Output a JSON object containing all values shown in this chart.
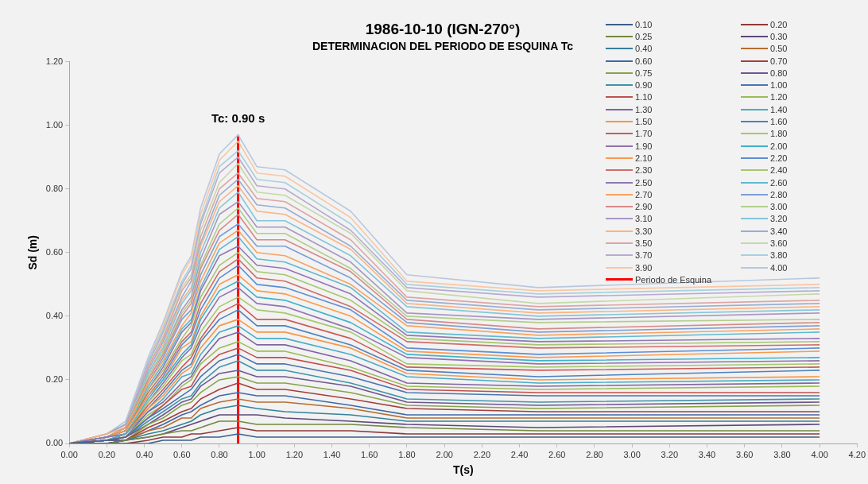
{
  "chart_data": {
    "type": "line",
    "title": "1986-10-10 (IGN-270°)",
    "subtitle": "DETERMINACION DEL PERIODO DE ESQUINA Tc",
    "xlabel": "T(s)",
    "ylabel": "Sd (m)",
    "x": [
      0,
      0.2,
      0.3,
      0.42,
      0.5,
      0.6,
      0.65,
      0.7,
      0.8,
      0.9,
      1.0,
      1.15,
      1.5,
      1.8,
      2.5,
      4.0
    ],
    "xlim": [
      0,
      4.2
    ],
    "ylim": [
      0,
      1.2
    ],
    "xticks": [
      {
        "value": 0,
        "label": "0.00"
      },
      {
        "value": 0.2,
        "label": "0.20"
      },
      {
        "value": 0.4,
        "label": "0.40"
      },
      {
        "value": 0.6,
        "label": "0.60"
      },
      {
        "value": 0.8,
        "label": "0.80"
      },
      {
        "value": 1.0,
        "label": "1.00"
      },
      {
        "value": 1.2,
        "label": "1.20"
      },
      {
        "value": 1.4,
        "label": "1.40"
      },
      {
        "value": 1.6,
        "label": "1.60"
      },
      {
        "value": 1.8,
        "label": "1.80"
      },
      {
        "value": 2.0,
        "label": "2.00"
      },
      {
        "value": 2.2,
        "label": "2.20"
      },
      {
        "value": 2.4,
        "label": "2.40"
      },
      {
        "value": 2.6,
        "label": "2.60"
      },
      {
        "value": 2.8,
        "label": "2.80"
      },
      {
        "value": 3.0,
        "label": "3.00"
      },
      {
        "value": 3.2,
        "label": "3.20"
      },
      {
        "value": 3.4,
        "label": "3.40"
      },
      {
        "value": 3.6,
        "label": "3.60"
      },
      {
        "value": 3.8,
        "label": "3.80"
      },
      {
        "value": 4.0,
        "label": "4.00"
      },
      {
        "value": 4.2,
        "label": "4.20"
      }
    ],
    "yticks": [
      {
        "value": 0,
        "label": "0.00"
      },
      {
        "value": 0.2,
        "label": "0.20"
      },
      {
        "value": 0.4,
        "label": "0.40"
      },
      {
        "value": 0.6,
        "label": "0.60"
      },
      {
        "value": 0.8,
        "label": "0.80"
      },
      {
        "value": 1.0,
        "label": "1.00"
      },
      {
        "value": 1.2,
        "label": "1.20"
      }
    ],
    "grid": false,
    "legend": "top right",
    "marker": "none",
    "line_style": "solid",
    "annotations": [
      "Tc: 0.90 s"
    ],
    "series": [
      {
        "name": "0.10",
        "color": "#3a5f8b",
        "values": [
          0,
          0,
          0,
          0,
          0.01,
          0.01,
          0.01,
          0.02,
          0.02,
          0.03,
          0.02,
          0.02,
          0.02,
          0.02,
          0.02,
          0.02
        ]
      },
      {
        "name": "0.20",
        "color": "#8e3a38",
        "values": [
          0,
          0,
          0,
          0.01,
          0.02,
          0.02,
          0.03,
          0.03,
          0.04,
          0.05,
          0.04,
          0.04,
          0.04,
          0.03,
          0.03,
          0.03
        ]
      },
      {
        "name": "0.25",
        "color": "#72893f",
        "values": [
          0,
          0,
          0.01,
          0.02,
          0.03,
          0.04,
          0.04,
          0.05,
          0.07,
          0.07,
          0.06,
          0.06,
          0.06,
          0.05,
          0.04,
          0.04
        ]
      },
      {
        "name": "0.30",
        "color": "#5d4878",
        "values": [
          0,
          0,
          0.01,
          0.02,
          0.03,
          0.05,
          0.06,
          0.07,
          0.09,
          0.09,
          0.09,
          0.08,
          0.07,
          0.06,
          0.05,
          0.06
        ]
      },
      {
        "name": "0.40",
        "color": "#35809a",
        "values": [
          0,
          0,
          0.01,
          0.03,
          0.04,
          0.06,
          0.07,
          0.09,
          0.11,
          0.12,
          0.11,
          0.1,
          0.09,
          0.07,
          0.07,
          0.07
        ]
      },
      {
        "name": "0.50",
        "color": "#b66d32",
        "values": [
          0,
          0,
          0.01,
          0.04,
          0.05,
          0.08,
          0.08,
          0.11,
          0.13,
          0.14,
          0.13,
          0.13,
          0.11,
          0.08,
          0.08,
          0.08
        ]
      },
      {
        "name": "0.60",
        "color": "#3f6aa5",
        "values": [
          0,
          0.01,
          0.01,
          0.04,
          0.06,
          0.09,
          0.1,
          0.12,
          0.15,
          0.16,
          0.15,
          0.15,
          0.12,
          0.09,
          0.09,
          0.09
        ]
      },
      {
        "name": "0.70",
        "color": "#a43f3c",
        "values": [
          0,
          0.01,
          0.01,
          0.05,
          0.07,
          0.1,
          0.11,
          0.14,
          0.17,
          0.19,
          0.17,
          0.17,
          0.14,
          0.11,
          0.1,
          0.1
        ]
      },
      {
        "name": "0.75",
        "color": "#86a34b",
        "values": [
          0,
          0.01,
          0.01,
          0.06,
          0.08,
          0.12,
          0.13,
          0.16,
          0.2,
          0.21,
          0.19,
          0.19,
          0.16,
          0.12,
          0.11,
          0.12
        ]
      },
      {
        "name": "0.80",
        "color": "#6e5690",
        "values": [
          0,
          0.01,
          0.02,
          0.06,
          0.09,
          0.13,
          0.14,
          0.18,
          0.22,
          0.23,
          0.21,
          0.21,
          0.18,
          0.13,
          0.12,
          0.13
        ]
      },
      {
        "name": "0.90",
        "color": "#3f94ab",
        "values": [
          0,
          0.01,
          0.02,
          0.07,
          0.1,
          0.14,
          0.15,
          0.19,
          0.24,
          0.26,
          0.23,
          0.23,
          0.19,
          0.14,
          0.13,
          0.14
        ]
      },
      {
        "name": "1.00",
        "color": "#4a74b0",
        "values": [
          0,
          0.01,
          0.02,
          0.08,
          0.11,
          0.15,
          0.17,
          0.21,
          0.26,
          0.28,
          0.25,
          0.25,
          0.21,
          0.16,
          0.15,
          0.15
        ]
      },
      {
        "name": "1.10",
        "color": "#c0504d",
        "values": [
          0,
          0.01,
          0.02,
          0.08,
          0.12,
          0.17,
          0.18,
          0.23,
          0.28,
          0.3,
          0.27,
          0.27,
          0.23,
          0.17,
          0.16,
          0.16
        ]
      },
      {
        "name": "1.20",
        "color": "#9bbb59",
        "values": [
          0,
          0.01,
          0.02,
          0.09,
          0.12,
          0.18,
          0.2,
          0.25,
          0.3,
          0.32,
          0.29,
          0.29,
          0.24,
          0.18,
          0.17,
          0.18
        ]
      },
      {
        "name": "1.30",
        "color": "#8064a2",
        "values": [
          0,
          0.01,
          0.02,
          0.1,
          0.13,
          0.19,
          0.21,
          0.26,
          0.33,
          0.35,
          0.31,
          0.31,
          0.26,
          0.19,
          0.18,
          0.19
        ]
      },
      {
        "name": "1.40",
        "color": "#4bacc6",
        "values": [
          0,
          0.01,
          0.03,
          0.1,
          0.14,
          0.21,
          0.22,
          0.28,
          0.35,
          0.37,
          0.33,
          0.33,
          0.28,
          0.21,
          0.19,
          0.2
        ]
      },
      {
        "name": "1.50",
        "color": "#f79646",
        "values": [
          0,
          0.01,
          0.03,
          0.11,
          0.15,
          0.22,
          0.24,
          0.3,
          0.37,
          0.39,
          0.35,
          0.35,
          0.3,
          0.22,
          0.2,
          0.21
        ]
      },
      {
        "name": "1.60",
        "color": "#4f81bd",
        "values": [
          0,
          0.01,
          0.03,
          0.11,
          0.16,
          0.23,
          0.25,
          0.32,
          0.39,
          0.42,
          0.37,
          0.37,
          0.31,
          0.23,
          0.21,
          0.23
        ]
      },
      {
        "name": "1.70",
        "color": "#cd5b58",
        "values": [
          0,
          0.01,
          0.03,
          0.12,
          0.17,
          0.24,
          0.27,
          0.33,
          0.41,
          0.44,
          0.39,
          0.39,
          0.33,
          0.24,
          0.23,
          0.24
        ]
      },
      {
        "name": "1.80",
        "color": "#a5c86a",
        "values": [
          0,
          0.01,
          0.03,
          0.13,
          0.18,
          0.26,
          0.28,
          0.35,
          0.43,
          0.46,
          0.42,
          0.41,
          0.35,
          0.25,
          0.24,
          0.25
        ]
      },
      {
        "name": "1.90",
        "color": "#8f73b0",
        "values": [
          0,
          0.02,
          0.03,
          0.13,
          0.19,
          0.27,
          0.3,
          0.37,
          0.46,
          0.49,
          0.44,
          0.43,
          0.36,
          0.27,
          0.25,
          0.26
        ]
      },
      {
        "name": "2.00",
        "color": "#3fb2cc",
        "values": [
          0,
          0.02,
          0.03,
          0.14,
          0.2,
          0.28,
          0.31,
          0.39,
          0.48,
          0.51,
          0.46,
          0.45,
          0.38,
          0.28,
          0.26,
          0.27
        ]
      },
      {
        "name": "2.10",
        "color": "#fa9a4e",
        "values": [
          0,
          0.02,
          0.04,
          0.15,
          0.2,
          0.3,
          0.32,
          0.4,
          0.5,
          0.53,
          0.48,
          0.47,
          0.4,
          0.29,
          0.27,
          0.29
        ]
      },
      {
        "name": "2.20",
        "color": "#5b8ed4",
        "values": [
          0,
          0.02,
          0.04,
          0.15,
          0.21,
          0.31,
          0.34,
          0.42,
          0.52,
          0.56,
          0.5,
          0.49,
          0.42,
          0.3,
          0.28,
          0.3
        ]
      },
      {
        "name": "2.30",
        "color": "#d06c69",
        "values": [
          0,
          0.02,
          0.04,
          0.16,
          0.22,
          0.32,
          0.35,
          0.44,
          0.54,
          0.58,
          0.52,
          0.51,
          0.43,
          0.32,
          0.3,
          0.31
        ]
      },
      {
        "name": "2.40",
        "color": "#a6c66e",
        "values": [
          0,
          0.02,
          0.04,
          0.17,
          0.23,
          0.33,
          0.37,
          0.46,
          0.56,
          0.6,
          0.54,
          0.53,
          0.45,
          0.33,
          0.31,
          0.32
        ]
      },
      {
        "name": "2.50",
        "color": "#9177b4",
        "values": [
          0,
          0.02,
          0.04,
          0.17,
          0.24,
          0.35,
          0.38,
          0.48,
          0.59,
          0.62,
          0.56,
          0.55,
          0.47,
          0.34,
          0.32,
          0.33
        ]
      },
      {
        "name": "2.60",
        "color": "#5fb9d1",
        "values": [
          0,
          0.02,
          0.04,
          0.18,
          0.25,
          0.36,
          0.39,
          0.49,
          0.61,
          0.65,
          0.58,
          0.57,
          0.49,
          0.35,
          0.33,
          0.35
        ]
      },
      {
        "name": "2.70",
        "color": "#f9a25f",
        "values": [
          0,
          0.02,
          0.05,
          0.19,
          0.26,
          0.37,
          0.41,
          0.51,
          0.63,
          0.67,
          0.6,
          0.59,
          0.5,
          0.37,
          0.34,
          0.36
        ]
      },
      {
        "name": "2.80",
        "color": "#7d9fd4",
        "values": [
          0,
          0.02,
          0.05,
          0.19,
          0.27,
          0.39,
          0.42,
          0.53,
          0.65,
          0.69,
          0.62,
          0.62,
          0.52,
          0.38,
          0.35,
          0.37
        ]
      },
      {
        "name": "2.90",
        "color": "#d68a88",
        "values": [
          0,
          0.02,
          0.05,
          0.2,
          0.28,
          0.4,
          0.44,
          0.55,
          0.67,
          0.72,
          0.64,
          0.64,
          0.54,
          0.39,
          0.36,
          0.38
        ]
      },
      {
        "name": "3.00",
        "color": "#b3ce8c",
        "values": [
          0,
          0.02,
          0.05,
          0.21,
          0.29,
          0.41,
          0.45,
          0.56,
          0.69,
          0.74,
          0.66,
          0.66,
          0.55,
          0.4,
          0.38,
          0.39
        ]
      },
      {
        "name": "3.10",
        "color": "#a897c2",
        "values": [
          0,
          0.02,
          0.05,
          0.21,
          0.29,
          0.42,
          0.46,
          0.58,
          0.72,
          0.76,
          0.68,
          0.68,
          0.57,
          0.41,
          0.39,
          0.41
        ]
      },
      {
        "name": "3.20",
        "color": "#85c6d8",
        "values": [
          0,
          0.02,
          0.05,
          0.22,
          0.3,
          0.44,
          0.48,
          0.6,
          0.74,
          0.79,
          0.7,
          0.7,
          0.59,
          0.43,
          0.4,
          0.42
        ]
      },
      {
        "name": "3.30",
        "color": "#f9b485",
        "values": [
          0,
          0.03,
          0.05,
          0.22,
          0.31,
          0.45,
          0.49,
          0.62,
          0.76,
          0.81,
          0.73,
          0.72,
          0.61,
          0.44,
          0.41,
          0.43
        ]
      },
      {
        "name": "3.40",
        "color": "#98aed3",
        "values": [
          0,
          0.03,
          0.06,
          0.23,
          0.32,
          0.46,
          0.51,
          0.63,
          0.78,
          0.83,
          0.75,
          0.74,
          0.62,
          0.45,
          0.42,
          0.44
        ]
      },
      {
        "name": "3.50",
        "color": "#dea4a3",
        "values": [
          0,
          0.03,
          0.06,
          0.24,
          0.33,
          0.48,
          0.52,
          0.65,
          0.8,
          0.85,
          0.77,
          0.76,
          0.64,
          0.46,
          0.43,
          0.45
        ]
      },
      {
        "name": "3.60",
        "color": "#c4d9a8",
        "values": [
          0,
          0.03,
          0.06,
          0.24,
          0.34,
          0.49,
          0.53,
          0.67,
          0.82,
          0.88,
          0.79,
          0.78,
          0.66,
          0.48,
          0.44,
          0.47
        ]
      },
      {
        "name": "3.70",
        "color": "#b8aad0",
        "values": [
          0,
          0.03,
          0.06,
          0.25,
          0.35,
          0.5,
          0.55,
          0.69,
          0.85,
          0.9,
          0.81,
          0.8,
          0.67,
          0.49,
          0.46,
          0.48
        ]
      },
      {
        "name": "3.80",
        "color": "#a5d1de",
        "values": [
          0,
          0.03,
          0.06,
          0.26,
          0.36,
          0.51,
          0.56,
          0.7,
          0.87,
          0.92,
          0.83,
          0.82,
          0.69,
          0.5,
          0.47,
          0.49
        ]
      },
      {
        "name": "3.90",
        "color": "#fac6a4",
        "values": [
          0,
          0.03,
          0.06,
          0.26,
          0.37,
          0.53,
          0.58,
          0.72,
          0.89,
          0.95,
          0.85,
          0.84,
          0.71,
          0.51,
          0.48,
          0.5
        ]
      },
      {
        "name": "4.00",
        "color": "#b8c7df",
        "values": [
          0,
          0.03,
          0.07,
          0.27,
          0.38,
          0.54,
          0.59,
          0.74,
          0.91,
          0.97,
          0.87,
          0.86,
          0.73,
          0.53,
          0.49,
          0.52
        ]
      },
      {
        "name": "Periodo de Esquina",
        "color": "#ff0000",
        "x": [
          0.9,
          0.9
        ],
        "values": [
          0,
          0.97
        ]
      }
    ]
  }
}
